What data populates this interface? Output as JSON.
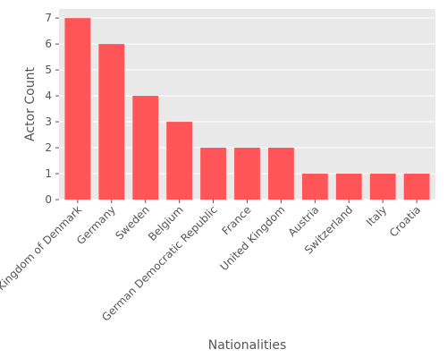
{
  "chart_data": {
    "type": "bar",
    "title": "",
    "xlabel": "Nationalities",
    "ylabel": "Actor Count",
    "categories": [
      "Kingdom of Denmark",
      "Germany",
      "Sweden",
      "Belgium",
      "German Democratic Republic",
      "France",
      "United Kingdom",
      "Austria",
      "Switzerland",
      "Italy",
      "Croatia"
    ],
    "values": [
      7,
      6,
      4,
      3,
      2,
      2,
      2,
      1,
      1,
      1,
      1
    ],
    "ylim": [
      0,
      7.35
    ],
    "yticks": [
      0,
      1,
      2,
      3,
      4,
      5,
      6,
      7
    ],
    "grid": true,
    "colors": {
      "bar": "#ff5558",
      "plot_background": "#e9e9e9",
      "grid": "#ffffff",
      "text": "#555555"
    }
  }
}
